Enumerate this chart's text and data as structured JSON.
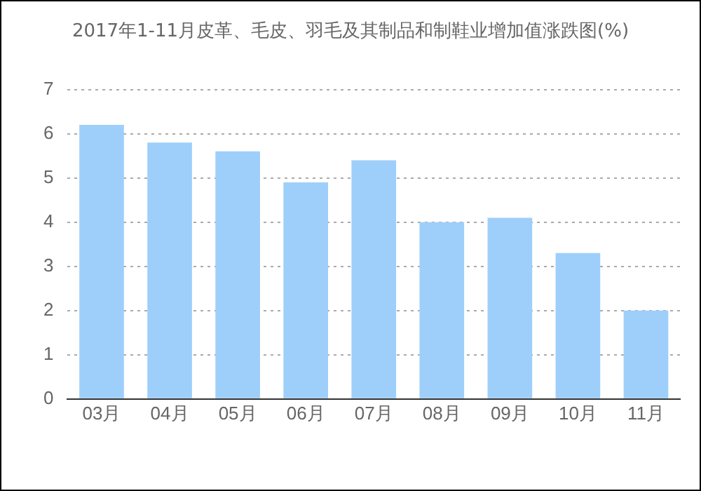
{
  "chart_data": {
    "type": "bar",
    "title": "2017年1-11月皮革、毛皮、羽毛及其制品和制鞋业增加值涨跌图(%)",
    "categories": [
      "03月",
      "04月",
      "05月",
      "06月",
      "07月",
      "08月",
      "09月",
      "10月",
      "11月"
    ],
    "values": [
      6.2,
      5.8,
      5.6,
      4.9,
      5.4,
      4.0,
      4.1,
      3.3,
      2.0
    ],
    "color": "#9ecffa",
    "ylim": [
      0,
      7
    ],
    "yticks": [
      0,
      1,
      2,
      3,
      4,
      5,
      6,
      7
    ],
    "grid": "y",
    "legend": false
  }
}
